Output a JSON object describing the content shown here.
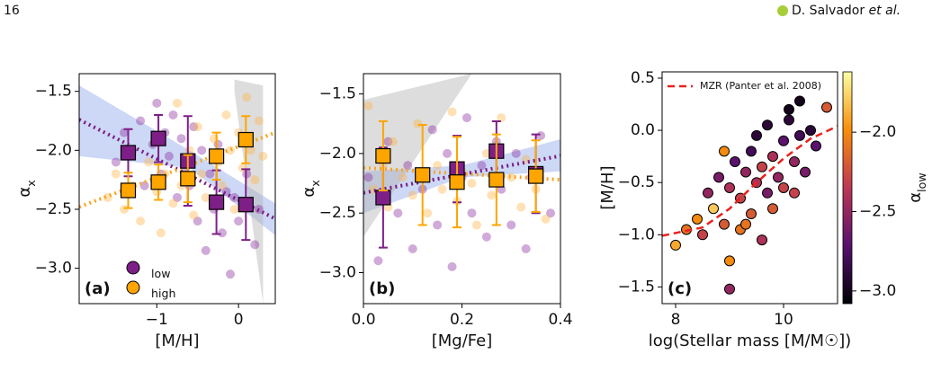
{
  "header": {
    "page": "16",
    "author": "D. Salvador",
    "etal": "et al."
  },
  "chart_data": [
    {
      "type": "scatter",
      "panel": "(a)",
      "xlabel": "[M/H]",
      "ylabel": {
        "symbol": "α",
        "sub": "x"
      },
      "xlim": [
        -1.95,
        0.45
      ],
      "ylim": [
        -3.3,
        -1.35
      ],
      "xticks": [
        {
          "value": -1,
          "label": "−1"
        },
        0
      ],
      "yticks": [
        {
          "value": -1.5,
          "label": "−1.5"
        },
        {
          "value": -2.0,
          "label": "−2.0"
        },
        {
          "value": -2.5,
          "label": "−2.5"
        },
        {
          "value": -3.0,
          "label": "−3.0"
        }
      ],
      "bands": [
        {
          "color": "#8fa8e8",
          "x": [
            -1.95,
            -0.6,
            0.45
          ],
          "lower": [
            -2.05,
            -2.15,
            -2.72
          ],
          "upper": [
            -1.45,
            -2.0,
            -2.45
          ]
        },
        {
          "color": "#b4b4b4",
          "x": [
            -0.05,
            0.3
          ],
          "lower": [
            -1.5,
            -3.3
          ],
          "upper": [
            -1.4,
            -1.45
          ]
        }
      ],
      "series": [
        {
          "name": "α",
          "sub": "low",
          "color": "#8a2b9e",
          "x": [
            -1.5,
            -1.4,
            -1.3,
            -1.2,
            -1.15,
            -1.05,
            -1.0,
            -0.95,
            -0.9,
            -0.85,
            -0.8,
            -0.75,
            -0.7,
            -0.65,
            -0.6,
            -0.55,
            -0.5,
            -0.45,
            -0.4,
            -0.35,
            -0.3,
            -0.25,
            -0.2,
            -0.15,
            -0.1,
            -0.05,
            0.0,
            0.1,
            0.2,
            0.25
          ],
          "values": [
            -2.1,
            -1.85,
            -2.0,
            -1.75,
            -2.3,
            -1.95,
            -1.6,
            -2.2,
            -1.85,
            -2.05,
            -1.7,
            -2.4,
            -1.9,
            -2.15,
            -2.3,
            -1.8,
            -2.6,
            -2.0,
            -2.85,
            -2.2,
            -2.5,
            -1.95,
            -2.7,
            -2.35,
            -3.05,
            -2.4,
            -2.6,
            -2.2,
            -2.8,
            -2.5
          ]
        },
        {
          "name": "α",
          "sub": "high",
          "color": "#ffb347",
          "x": [
            -1.6,
            -1.5,
            -1.4,
            -1.3,
            -1.2,
            -1.1,
            -1.0,
            -0.95,
            -0.9,
            -0.8,
            -0.75,
            -0.7,
            -0.6,
            -0.55,
            -0.5,
            -0.45,
            -0.4,
            -0.3,
            -0.25,
            -0.2,
            -0.15,
            -0.1,
            -0.05,
            0.0,
            0.05,
            0.1,
            0.15,
            0.2,
            0.25,
            0.3
          ],
          "values": [
            -2.4,
            -2.2,
            -2.5,
            -2.3,
            -2.6,
            -2.1,
            -2.35,
            -2.7,
            -2.2,
            -2.45,
            -1.6,
            -2.3,
            -2.0,
            -2.55,
            -1.8,
            -2.2,
            -2.4,
            -1.9,
            -2.1,
            -2.3,
            -1.7,
            -2.0,
            -2.5,
            -1.85,
            -2.15,
            -1.55,
            -2.0,
            -2.25,
            -1.75,
            -2.05
          ]
        }
      ],
      "fits": [
        {
          "color": "#7b1a86",
          "x": [
            -1.95,
            0.45
          ],
          "values": [
            -1.74,
            -2.58
          ]
        },
        {
          "color": "#f7a623",
          "x": [
            -1.95,
            0.45
          ],
          "values": [
            -2.48,
            -1.85
          ]
        }
      ],
      "binned": [
        {
          "color": "#7e1f87",
          "x": [
            -1.35,
            -0.98,
            -0.62,
            -0.27,
            0.09
          ],
          "values": [
            -2.02,
            -1.9,
            -2.09,
            -2.44,
            -2.46
          ],
          "err": [
            0.2,
            0.2,
            0.38,
            0.27,
            0.3
          ]
        },
        {
          "color": "#ffa500",
          "x": [
            -1.35,
            -0.98,
            -0.62,
            -0.27,
            0.09
          ],
          "values": [
            -2.34,
            -2.27,
            -2.24,
            -2.05,
            -1.91
          ],
          "err": [
            0.15,
            0.15,
            0.2,
            0.2,
            0.2
          ]
        }
      ]
    },
    {
      "type": "scatter",
      "panel": "(b)",
      "xlabel": "[Mg/Fe]",
      "ylabel": {
        "symbol": "α",
        "sub": "x"
      },
      "xlim": [
        0.0,
        0.4
      ],
      "ylim": [
        -3.26,
        -1.33
      ],
      "xticks": [
        {
          "value": 0.0,
          "label": "0.0"
        },
        0.2,
        0.4
      ],
      "yticks": [
        {
          "value": -1.5,
          "label": "−1.5"
        },
        {
          "value": -2.0,
          "label": "−2.0"
        },
        {
          "value": -2.5,
          "label": "−2.5"
        },
        {
          "value": -3.0,
          "label": "−3.0"
        }
      ],
      "bands": [
        {
          "color": "#8fa8e8",
          "x": [
            0.0,
            0.2,
            0.4
          ],
          "lower": [
            -2.5,
            -2.2,
            -2.15
          ],
          "upper": [
            -2.15,
            -2.1,
            -1.88
          ]
        },
        {
          "color": "#b4b4b4",
          "x": [
            0.0,
            0.22
          ],
          "lower": [
            -2.7,
            -1.33
          ],
          "upper": [
            -1.55,
            -1.33
          ]
        }
      ],
      "series": [
        {
          "color": "#8a2b9e",
          "x": [
            0.01,
            0.03,
            0.05,
            0.07,
            0.09,
            0.1,
            0.12,
            0.14,
            0.15,
            0.17,
            0.18,
            0.2,
            0.21,
            0.22,
            0.24,
            0.25,
            0.27,
            0.28,
            0.3,
            0.31,
            0.33,
            0.34,
            0.36,
            0.38
          ],
          "values": [
            -2.2,
            -2.9,
            -1.9,
            -2.5,
            -2.1,
            -2.8,
            -2.3,
            -1.8,
            -2.6,
            -2.0,
            -2.95,
            -2.2,
            -1.7,
            -2.5,
            -2.1,
            -2.7,
            -1.9,
            -2.3,
            -2.6,
            -2.0,
            -2.8,
            -2.2,
            -1.85,
            -2.5
          ]
        },
        {
          "color": "#ffb347",
          "x": [
            0.01,
            0.02,
            0.04,
            0.05,
            0.06,
            0.08,
            0.1,
            0.11,
            0.13,
            0.15,
            0.16,
            0.18,
            0.19,
            0.2,
            0.22,
            0.23,
            0.25,
            0.26,
            0.28,
            0.3,
            0.32,
            0.33,
            0.35,
            0.37
          ],
          "values": [
            -1.6,
            -2.3,
            -2.1,
            -2.45,
            -1.9,
            -2.2,
            -2.35,
            -1.75,
            -2.5,
            -2.1,
            -2.3,
            -1.65,
            -2.4,
            -2.15,
            -2.25,
            -2.6,
            -2.0,
            -2.35,
            -1.7,
            -2.2,
            -2.45,
            -2.05,
            -2.3,
            -2.55
          ]
        }
      ],
      "fits": [
        {
          "color": "#7b1a86",
          "x": [
            0.0,
            0.4
          ],
          "values": [
            -2.33,
            -2.02
          ]
        },
        {
          "color": "#f7a623",
          "x": [
            0.0,
            0.4
          ],
          "values": [
            -2.12,
            -2.22
          ]
        }
      ],
      "binned": [
        {
          "color": "#7e1f87",
          "x": [
            0.04,
            0.19,
            0.27,
            0.35
          ],
          "values": [
            -2.37,
            -2.13,
            -1.98,
            -2.17
          ],
          "err": [
            0.42,
            0.28,
            0.25,
            0.33
          ]
        },
        {
          "color": "#ffa500",
          "x": [
            0.04,
            0.12,
            0.19,
            0.27,
            0.35
          ],
          "values": [
            -2.02,
            -2.18,
            -2.24,
            -2.22,
            -2.19
          ],
          "err": [
            0.29,
            0.42,
            0.38,
            0.38,
            0.3
          ]
        }
      ]
    },
    {
      "type": "scatter",
      "panel": "(c)",
      "xlabel": "log(Stellar mass [M/M☉])",
      "ylabel": "[M/H]",
      "xlim": [
        7.75,
        11.0
      ],
      "ylim": [
        -1.66,
        0.56
      ],
      "xticks": [
        8,
        10
      ],
      "yticks": [
        0.5,
        {
          "value": 0.0,
          "label": "0.0"
        },
        {
          "value": -0.5,
          "label": "−0.5"
        },
        {
          "value": -1.0,
          "label": "−1.0"
        },
        {
          "value": -1.5,
          "label": "−1.5"
        }
      ],
      "colormap": "inferno",
      "colorbar": {
        "label": {
          "symbol": "α",
          "sub": "low"
        },
        "clim": [
          -3.08,
          -1.62
        ],
        "ticks": [
          {
            "value": -2.0,
            "label": "−2.0"
          },
          {
            "value": -2.5,
            "label": "−2.5"
          },
          {
            "value": -3.0,
            "label": "−3.0"
          }
        ]
      },
      "series": [
        {
          "x": [
            8.0,
            8.2,
            8.4,
            8.5,
            8.6,
            8.7,
            8.8,
            8.9,
            9.0,
            9.0,
            9.1,
            9.2,
            9.2,
            9.3,
            9.4,
            9.4,
            9.5,
            9.5,
            9.6,
            9.7,
            9.7,
            9.8,
            9.8,
            9.9,
            10.0,
            10.0,
            10.1,
            10.2,
            10.3,
            10.3,
            10.4,
            10.5,
            10.6,
            10.8,
            9.0,
            8.9,
            9.6,
            10.1,
            10.2,
            9.3
          ],
          "values": [
            -1.1,
            -0.95,
            -0.85,
            -1.0,
            -0.6,
            -0.75,
            -0.45,
            -0.9,
            -0.55,
            -1.25,
            -0.3,
            -0.65,
            -0.95,
            -0.4,
            -0.2,
            -0.8,
            -0.5,
            -0.05,
            -0.35,
            -0.6,
            0.05,
            -0.25,
            -0.75,
            -0.45,
            -0.1,
            -0.55,
            0.2,
            -0.3,
            -0.05,
            0.28,
            -0.4,
            0.0,
            -0.15,
            0.22,
            -1.52,
            -0.2,
            -1.05,
            0.1,
            -0.6,
            -0.9
          ],
          "c": [
            -1.9,
            -2.1,
            -2.0,
            -2.3,
            -2.5,
            -1.8,
            -2.6,
            -2.2,
            -2.4,
            -2.0,
            -2.7,
            -2.3,
            -2.1,
            -2.5,
            -2.8,
            -2.2,
            -2.4,
            -2.9,
            -2.3,
            -2.6,
            -2.9,
            -2.4,
            -2.2,
            -2.5,
            -2.7,
            -2.3,
            -3.0,
            -2.5,
            -2.8,
            -3.0,
            -2.6,
            -2.9,
            -2.7,
            -2.2,
            -2.5,
            -2.0,
            -2.4,
            -2.9,
            -2.3,
            -2.1
          ]
        }
      ],
      "curves": [
        {
          "name": "MZR (Panter et al. 2008)",
          "color": "#e8221c",
          "x": [
            7.75,
            8.5,
            9.0,
            9.5,
            10.0,
            10.5,
            11.0
          ],
          "values": [
            -1.01,
            -0.93,
            -0.75,
            -0.5,
            -0.27,
            -0.08,
            0.04
          ]
        }
      ]
    }
  ]
}
